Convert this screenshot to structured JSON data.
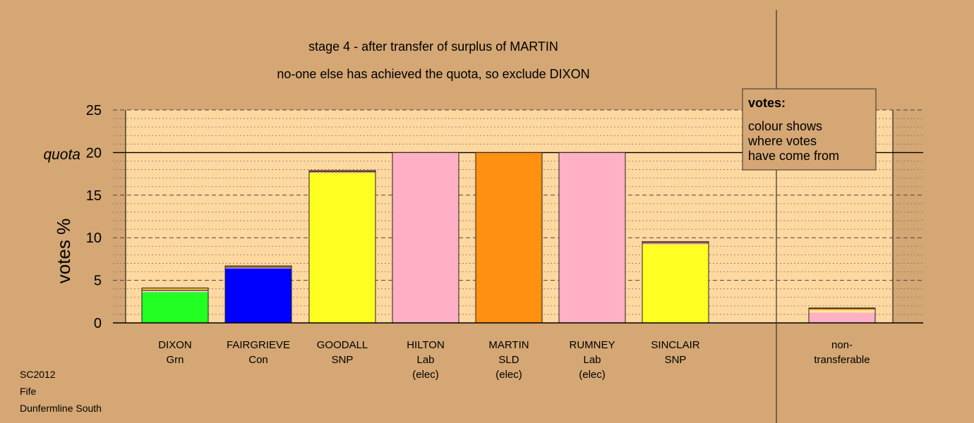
{
  "chart_data": {
    "type": "bar",
    "stacked": true,
    "title": "stage 4 - after transfer of surplus of MARTIN",
    "subtitle": "no-one else has achieved the quota, so exclude DIXON",
    "ylabel": "votes %",
    "ylim": [
      0,
      25
    ],
    "yticks": [
      0,
      5,
      10,
      15,
      20,
      25
    ],
    "quota": {
      "label": "quota",
      "value": 20
    },
    "grid": true,
    "legend": {
      "placement": "top-right",
      "title": "votes:",
      "lines": [
        "colour shows",
        "where votes",
        "have come from"
      ]
    },
    "bars": [
      {
        "name": "DIXON",
        "party": "Grn",
        "status": "",
        "segments": [
          {
            "color": "#22ff22",
            "value": 3.6
          },
          {
            "color": "#f5b5c6",
            "value": 0.2
          },
          {
            "color": "#222222",
            "value": 0.1
          },
          {
            "color": "#ffff22",
            "value": 0.1
          },
          {
            "color": "#ff9a20",
            "value": 0.1
          }
        ]
      },
      {
        "name": "FAIRGRIEVE",
        "party": "Con",
        "status": "",
        "segments": [
          {
            "color": "#0000ff",
            "value": 6.4
          },
          {
            "color": "#f5b5c6",
            "value": 0.1
          },
          {
            "color": "#222222",
            "value": 0.1
          },
          {
            "color": "#ff9a20",
            "value": 0.1
          }
        ]
      },
      {
        "name": "GOODALL",
        "party": "SNP",
        "status": "",
        "segments": [
          {
            "color": "#ffff22",
            "value": 17.6
          },
          {
            "color": "#f5b5c6",
            "value": 0.1
          },
          {
            "color": "#222222",
            "value": 0.1
          },
          {
            "color": "#ff9a20",
            "value": 0.1
          }
        ]
      },
      {
        "name": "HILTON",
        "party": "Lab",
        "status": "(elec)",
        "segments": [
          {
            "color": "#ffb0c4",
            "value": 20.0
          }
        ]
      },
      {
        "name": "MARTIN",
        "party": "SLD",
        "status": "(elec)",
        "segments": [
          {
            "color": "#ff9010",
            "value": 20.0
          }
        ]
      },
      {
        "name": "RUMNEY",
        "party": "Lab",
        "status": "(elec)",
        "segments": [
          {
            "color": "#ffb0c4",
            "value": 20.0
          }
        ]
      },
      {
        "name": "SINCLAIR",
        "party": "SNP",
        "status": "",
        "segments": [
          {
            "color": "#ffff22",
            "value": 9.2
          },
          {
            "color": "#f5b5c6",
            "value": 0.15
          },
          {
            "color": "#222222",
            "value": 0.1
          },
          {
            "color": "#ff9a20",
            "value": 0.1
          }
        ]
      },
      {
        "name": "non-",
        "party": "transferable",
        "status": "",
        "segments": [
          {
            "color": "#ffb0c4",
            "value": 1.2
          },
          {
            "color": "#ffe89a",
            "value": 0.3
          },
          {
            "color": "#ff9a20",
            "value": 0.15
          },
          {
            "color": "#222222",
            "value": 0.1
          }
        ]
      }
    ]
  },
  "footer": {
    "code": "SC2012",
    "council": "Fife",
    "ward": "Dunfermline South"
  }
}
